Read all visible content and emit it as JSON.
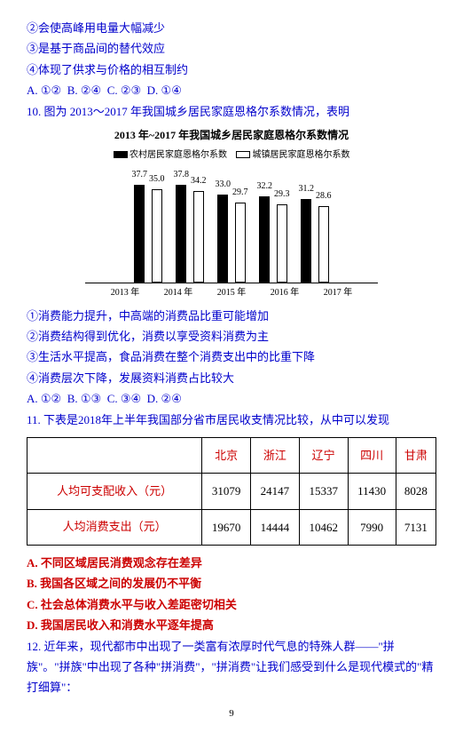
{
  "lines": {
    "l1": "②会使高峰用电量大幅减少",
    "l2": "③是基于商品间的替代效应",
    "l3": "④体现了供求与价格的相互制约",
    "l4a": "A. ①②",
    "l4b": "B. ②④",
    "l4c": "C. ②③",
    "l4d": "D. ①④",
    "q10": "10. 图为 2013～2017 年我国城乡居民家庭恩格尔系数情况，表明",
    "chart_title": "2013 年~2017 年我国城乡居民家庭恩格尔系数情况",
    "legend1": "农村居民家庭恩格尔系数",
    "legend2": "城镇居民家庭恩格尔系数",
    "l5": "①消费能力提升，中高端的消费品比重可能增加",
    "l6": "②消费结构得到优化，消费以享受资料消费为主",
    "l7": "③生活水平提高，食品消费在整个消费支出中的比重下降",
    "l8": "④消费层次下降，发展资料消费占比较大",
    "l9a": "A. ①②",
    "l9b": "B. ①③",
    "l9c": "C. ③④",
    "l9d": "D. ②④",
    "q11": "11. 下表是2018年上半年我国部分省市居民收支情况比较，从中可以发现",
    "optA": "A. 不同区域居民消费观念存在差异",
    "optB": "B. 我国各区域之间的发展仍不平衡",
    "optC": "C. 社会总体消费水平与收入差距密切相关",
    "optD": "D. 我国居民收入和消费水平逐年提高",
    "q12": "12. 近年来，现代都市中出现了一类富有浓厚时代气息的特殊人群——\"拼族\"。\"拼族\"中出现了各种\"拼消费\"，\"拼消费\"让我们感受到什么是现代模式的\"精打细算\"："
  },
  "chart": {
    "years": [
      "2013 年",
      "2014 年",
      "2015 年",
      "2016 年",
      "2017 年"
    ],
    "rural": [
      37.7,
      37.8,
      33.0,
      32.2,
      31.2
    ],
    "urban": [
      35.0,
      34.2,
      29.7,
      29.3,
      28.6
    ],
    "scale": 3.0
  },
  "table": {
    "headers": [
      "",
      "北京",
      "浙江",
      "辽宁",
      "四川",
      "甘肃"
    ],
    "rows": [
      {
        "label": "人均可支配收入（元）",
        "vals": [
          "31079",
          "24147",
          "15337",
          "11430",
          "8028"
        ]
      },
      {
        "label": "人均消费支出（元）",
        "vals": [
          "19670",
          "14444",
          "10462",
          "7990",
          "7131"
        ]
      }
    ]
  },
  "page": "9"
}
